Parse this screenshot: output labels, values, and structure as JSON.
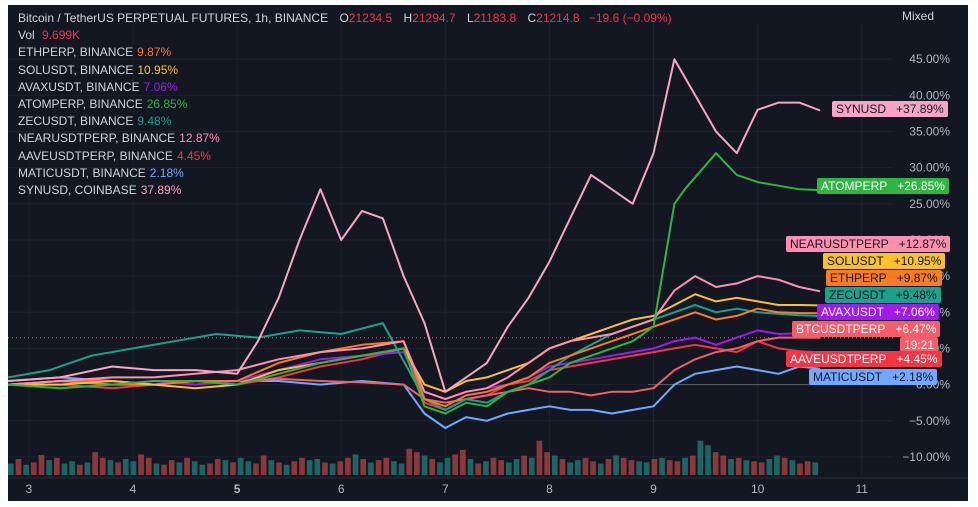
{
  "header": {
    "symbol": "Bitcoin / TetherUS PERPETUAL FUTURES, 1h, BINANCE",
    "open_label": "O",
    "open": "21234.5",
    "high_label": "H",
    "high": "21294.7",
    "low_label": "L",
    "low": "21183.8",
    "close_label": "C",
    "close": "21214.8",
    "change": "−19.6 (−0.09%)",
    "vol_label": "Vol",
    "vol": "9.699K"
  },
  "scale_mode": "Mixed",
  "colors": {
    "background": "#131722",
    "text": "#d1d4dc",
    "grid": "#1e222d",
    "up": "#26a69a",
    "down": "#ef5350",
    "ETHPERP": "#f77c25",
    "SOLUSDT": "#fbc02d",
    "AVAXUSDT": "#a219ee",
    "ATOMPERP": "#2fb544",
    "ZECUSDT": "#1aa28d",
    "NEARUSDTPERP": "#ff8fb1",
    "AAVEUSDTPERP": "#f23645",
    "MATICUSDT": "#74a8ff",
    "SYNUSD": "#f7a6c2",
    "BTCUSDTPERP": "#f55d6b"
  },
  "comparisons": [
    {
      "name": "ETHPERP, BINANCE",
      "value": "9.87%",
      "color": "#f77c25"
    },
    {
      "name": "SOLUSDT, BINANCE",
      "value": "10.95%",
      "color": "#fbc02d"
    },
    {
      "name": "AVAXUSDT, BINANCE",
      "value": "7.06%",
      "color": "#a219ee"
    },
    {
      "name": "ATOMPERP, BINANCE",
      "value": "26.85%",
      "color": "#2fb544"
    },
    {
      "name": "ZECUSDT, BINANCE",
      "value": "9.48%",
      "color": "#1aa28d"
    },
    {
      "name": "NEARUSDTPERP, BINANCE",
      "value": "12.87%",
      "color": "#ff8fb1"
    },
    {
      "name": "AAVEUSDTPERP, BINANCE",
      "value": "4.45%",
      "color": "#f23645"
    },
    {
      "name": "MATICUSDT, BINANCE",
      "value": "2.18%",
      "color": "#74a8ff"
    },
    {
      "name": "SYNUSD, COINBASE",
      "value": "37.89%",
      "color": "#f7a6c2"
    }
  ],
  "chart_data": {
    "type": "line",
    "x_ticks": [
      "3",
      "4",
      "5",
      "6",
      "7",
      "8",
      "9",
      "10",
      "11"
    ],
    "y_ticks": [
      "45.00%",
      "40.00%",
      "35.00%",
      "30.00%",
      "25.00%",
      "20.00%",
      "15.00%",
      "10.00%",
      "5.00%",
      "0.00%",
      "−5.00%",
      "−10.00%"
    ],
    "ylim": [
      -12.5,
      50
    ],
    "xlim": [
      2.8,
      11.3
    ],
    "btc_countdown": "19:21",
    "series": [
      {
        "name": "SYNUSD",
        "label": "SYNUSD",
        "badge": "+37.89%",
        "color": "#f7a6c2",
        "text": "#131722",
        "x": [
          2.8,
          3.3,
          3.8,
          4.2,
          4.6,
          5.0,
          5.2,
          5.4,
          5.6,
          5.8,
          6.0,
          6.2,
          6.4,
          6.6,
          6.8,
          7.0,
          7.2,
          7.4,
          7.6,
          7.8,
          8.0,
          8.2,
          8.4,
          8.6,
          8.8,
          9.0,
          9.2,
          9.4,
          9.6,
          9.8,
          10.0,
          10.2,
          10.4,
          10.6
        ],
        "y": [
          0.5,
          1.0,
          2.5,
          2.0,
          2.0,
          1.5,
          6.0,
          12.0,
          20.0,
          27.0,
          20.0,
          24.0,
          23.0,
          15.0,
          8.5,
          -1.0,
          1.0,
          3.0,
          8.0,
          12.0,
          17.0,
          23.0,
          29.0,
          27.0,
          25.0,
          32.0,
          45.0,
          40.0,
          35.0,
          32.0,
          38.0,
          39.0,
          39.0,
          37.9
        ]
      },
      {
        "name": "ATOMPERP",
        "label": "ATOMPERP",
        "badge": "+26.85%",
        "color": "#2fb544",
        "text": "#ffffff",
        "x": [
          2.8,
          3.3,
          3.8,
          4.2,
          4.6,
          5.0,
          5.4,
          5.8,
          6.2,
          6.6,
          6.8,
          7.0,
          7.2,
          7.4,
          7.6,
          7.8,
          8.0,
          8.2,
          8.4,
          8.6,
          8.8,
          9.0,
          9.2,
          9.3,
          9.6,
          9.8,
          10.0,
          10.2,
          10.4,
          10.6
        ],
        "y": [
          0.0,
          -0.5,
          0.0,
          0.5,
          0.5,
          0.0,
          1.5,
          3.0,
          4.0,
          5.0,
          -3.0,
          -4.0,
          -2.5,
          -3.0,
          -1.0,
          0.0,
          1.0,
          3.0,
          4.0,
          5.0,
          6.0,
          8.0,
          25.0,
          27.0,
          32.0,
          29.0,
          28.0,
          27.5,
          27.0,
          26.9
        ]
      },
      {
        "name": "NEARUSDTPERP",
        "label": "NEARUSDTPERP",
        "badge": "+12.87%",
        "color": "#ff8fb1",
        "text": "#131722",
        "x": [
          2.8,
          3.3,
          3.8,
          4.2,
          4.6,
          5.0,
          5.4,
          5.8,
          6.2,
          6.6,
          6.8,
          7.0,
          7.2,
          7.4,
          7.6,
          7.8,
          8.0,
          8.2,
          8.4,
          8.6,
          8.8,
          9.0,
          9.2,
          9.4,
          9.6,
          9.8,
          10.0,
          10.2,
          10.4,
          10.6
        ],
        "y": [
          0.0,
          0.5,
          1.0,
          1.0,
          1.5,
          2.0,
          3.5,
          4.5,
          5.0,
          6.0,
          -1.0,
          -2.0,
          -1.0,
          -0.5,
          1.0,
          3.0,
          5.0,
          6.0,
          6.5,
          7.0,
          8.0,
          9.0,
          13.0,
          15.0,
          13.5,
          14.0,
          15.0,
          14.5,
          13.5,
          12.9
        ]
      },
      {
        "name": "SOLUSDT",
        "label": "SOLUSDT",
        "badge": "+10.95%",
        "color": "#fbc02d",
        "text": "#131722",
        "x": [
          2.8,
          3.3,
          3.8,
          4.2,
          4.6,
          5.0,
          5.4,
          5.8,
          6.2,
          6.6,
          6.8,
          7.0,
          7.2,
          7.4,
          7.6,
          7.8,
          8.0,
          8.2,
          8.4,
          8.6,
          8.8,
          9.0,
          9.2,
          9.4,
          9.6,
          9.8,
          10.0,
          10.2,
          10.4,
          10.6
        ],
        "y": [
          0.0,
          0.0,
          0.5,
          0.0,
          -0.5,
          0.0,
          2.0,
          3.0,
          4.0,
          5.0,
          0.0,
          -1.0,
          0.5,
          1.0,
          2.0,
          3.0,
          5.0,
          6.0,
          7.0,
          8.0,
          9.0,
          9.5,
          11.0,
          12.5,
          11.5,
          12.0,
          11.5,
          11.0,
          11.0,
          10.95
        ]
      },
      {
        "name": "ETHPERP",
        "label": "ETHPERP",
        "badge": "+9.87%",
        "color": "#f77c25",
        "text": "#131722",
        "x": [
          2.8,
          3.3,
          3.8,
          4.2,
          4.6,
          5.0,
          5.4,
          5.8,
          6.2,
          6.6,
          6.8,
          7.0,
          7.2,
          7.4,
          7.6,
          7.8,
          8.0,
          8.2,
          8.4,
          8.6,
          8.8,
          9.0,
          9.2,
          9.4,
          9.6,
          9.8,
          10.0,
          10.2,
          10.4,
          10.6
        ],
        "y": [
          0.0,
          0.5,
          0.0,
          0.0,
          0.5,
          0.5,
          3.0,
          4.5,
          5.5,
          6.0,
          -2.0,
          -3.0,
          -1.5,
          -1.0,
          0.0,
          1.0,
          3.0,
          4.0,
          5.0,
          6.0,
          7.0,
          8.0,
          9.0,
          10.0,
          9.0,
          9.5,
          10.5,
          10.0,
          9.9,
          9.87
        ]
      },
      {
        "name": "ZECUSDT",
        "label": "ZECUSDT",
        "badge": "+9.48%",
        "color": "#1aa28d",
        "text": "#131722",
        "x": [
          2.8,
          3.2,
          3.6,
          4.0,
          4.4,
          4.8,
          5.2,
          5.6,
          6.0,
          6.4,
          6.8,
          7.0,
          7.2,
          7.4,
          7.6,
          7.8,
          8.0,
          8.2,
          8.4,
          8.6,
          8.8,
          9.0,
          9.2,
          9.4,
          9.6,
          9.8,
          10.0,
          10.2,
          10.4,
          10.6
        ],
        "y": [
          1.0,
          2.0,
          4.0,
          5.0,
          6.0,
          7.0,
          6.5,
          7.5,
          7.0,
          8.5,
          -2.0,
          -3.5,
          -2.0,
          -2.5,
          -1.0,
          0.0,
          2.0,
          4.0,
          5.5,
          7.0,
          8.0,
          9.0,
          10.0,
          11.0,
          10.0,
          10.5,
          10.0,
          9.8,
          9.6,
          9.48
        ]
      },
      {
        "name": "AVAXUSDT",
        "label": "AVAXUSDT",
        "badge": "+7.06%",
        "color": "#a219ee",
        "text": "#ffffff",
        "x": [
          2.8,
          3.3,
          3.8,
          4.2,
          4.6,
          5.0,
          5.4,
          5.8,
          6.2,
          6.6,
          6.8,
          7.0,
          7.2,
          7.4,
          7.6,
          7.8,
          8.0,
          8.2,
          8.4,
          8.6,
          8.8,
          9.0,
          9.2,
          9.4,
          9.6,
          9.8,
          10.0,
          10.2,
          10.4,
          10.6
        ],
        "y": [
          0.0,
          0.5,
          0.0,
          0.5,
          0.0,
          0.5,
          2.0,
          3.5,
          4.0,
          4.5,
          -1.0,
          -2.0,
          -1.0,
          -0.5,
          0.0,
          1.0,
          2.5,
          3.0,
          3.5,
          4.0,
          4.5,
          5.0,
          6.0,
          6.5,
          5.5,
          6.5,
          7.5,
          7.0,
          7.1,
          7.06
        ]
      },
      {
        "name": "BTCUSDTPERP",
        "label": "BTCUSDTPERP",
        "badge": "+6.47%",
        "color": "#f55d6b",
        "text": "#ffffff",
        "x": [
          2.8,
          3.3,
          3.8,
          4.2,
          4.6,
          5.0,
          5.4,
          5.8,
          6.2,
          6.6,
          6.8,
          7.0,
          7.2,
          7.4,
          7.6,
          7.8,
          8.0,
          8.2,
          8.4,
          8.6,
          8.8,
          9.0,
          9.2,
          9.4,
          9.6,
          9.8,
          10.0,
          10.2,
          10.4,
          10.6
        ],
        "y": [
          0.0,
          0.5,
          0.5,
          0.0,
          0.5,
          0.5,
          0.8,
          0.5,
          0.3,
          0.0,
          -2.0,
          -2.5,
          -2.0,
          -1.5,
          -1.0,
          -0.5,
          -1.0,
          -1.0,
          -1.5,
          -1.0,
          -1.0,
          -0.5,
          2.0,
          3.5,
          4.5,
          5.0,
          6.0,
          6.5,
          6.5,
          6.47
        ]
      },
      {
        "name": "AAVEUSDTPERP",
        "label": "AAVEUSDTPERP",
        "badge": "+4.45%",
        "color": "#f23645",
        "text": "#ffffff",
        "x": [
          2.8,
          3.3,
          3.8,
          4.2,
          4.6,
          5.0,
          5.4,
          5.8,
          6.2,
          6.6,
          6.8,
          7.0,
          7.2,
          7.4,
          7.6,
          7.8,
          8.0,
          8.2,
          8.4,
          8.6,
          8.8,
          9.0,
          9.2,
          9.4,
          9.6,
          9.8,
          10.0,
          10.2,
          10.4,
          10.6
        ],
        "y": [
          0.0,
          0.0,
          -0.5,
          0.0,
          0.5,
          0.0,
          1.0,
          2.5,
          3.5,
          5.0,
          -2.5,
          -3.5,
          -2.0,
          -1.5,
          0.0,
          0.5,
          2.0,
          2.5,
          3.0,
          3.5,
          4.0,
          4.5,
          5.0,
          5.5,
          5.0,
          4.5,
          6.0,
          5.0,
          4.6,
          4.45
        ]
      },
      {
        "name": "MATICUSDT",
        "label": "MATICUSDT",
        "badge": "+2.18%",
        "color": "#74a8ff",
        "text": "#131722",
        "x": [
          2.8,
          3.3,
          3.8,
          4.2,
          4.6,
          5.0,
          5.4,
          5.8,
          6.2,
          6.6,
          6.8,
          7.0,
          7.2,
          7.4,
          7.6,
          7.8,
          8.0,
          8.2,
          8.4,
          8.6,
          8.8,
          9.0,
          9.2,
          9.4,
          9.6,
          9.8,
          10.0,
          10.2,
          10.4,
          10.6
        ],
        "y": [
          0.5,
          1.0,
          0.5,
          0.0,
          0.5,
          0.5,
          0.5,
          0.0,
          0.5,
          0.0,
          -4.0,
          -6.0,
          -4.5,
          -5.0,
          -4.0,
          -3.5,
          -3.0,
          -3.5,
          -3.5,
          -4.0,
          -3.5,
          -3.0,
          0.0,
          1.5,
          2.0,
          2.5,
          2.0,
          1.5,
          2.5,
          2.18
        ]
      }
    ],
    "volume": {
      "x_start": 2.8,
      "x_end": 10.6,
      "values": [
        20,
        28,
        18,
        22,
        35,
        26,
        30,
        20,
        24,
        18,
        22,
        40,
        30,
        26,
        22,
        28,
        24,
        36,
        30,
        20,
        18,
        26,
        22,
        30,
        24,
        18,
        20,
        28,
        26,
        22,
        30,
        24,
        20,
        34,
        26,
        22,
        18,
        24,
        30,
        26,
        28,
        22,
        20,
        24,
        30,
        36,
        28,
        22,
        26,
        30,
        24,
        20,
        46,
        40,
        34,
        28,
        22,
        30,
        36,
        44,
        28,
        20,
        24,
        30,
        26,
        22,
        28,
        34,
        30,
        60,
        40,
        34,
        28,
        22,
        26,
        30,
        24,
        20,
        28,
        34,
        30,
        26,
        24,
        22,
        28,
        30,
        26,
        24,
        30,
        34,
        60,
        52,
        40,
        34,
        28,
        30,
        26,
        24,
        22,
        28,
        34,
        30,
        26,
        20,
        24,
        22
      ],
      "up": [
        1,
        0,
        1,
        0,
        0,
        1,
        0,
        1,
        1,
        0,
        1,
        0,
        0,
        1,
        0,
        1,
        1,
        0,
        0,
        1,
        0,
        0,
        1,
        0,
        1,
        1,
        0,
        0,
        1,
        0,
        1,
        1,
        0,
        0,
        1,
        0,
        1,
        0,
        0,
        1,
        1,
        0,
        1,
        0,
        0,
        1,
        0,
        1,
        0,
        0,
        1,
        1,
        0,
        0,
        1,
        0,
        1,
        1,
        0,
        0,
        1,
        0,
        1,
        0,
        0,
        1,
        1,
        0,
        1,
        0,
        0,
        1,
        0,
        1,
        1,
        0,
        0,
        1,
        0,
        1,
        0,
        0,
        1,
        1,
        0,
        1,
        0,
        0,
        1,
        0,
        1,
        1,
        0,
        0,
        1,
        0,
        1,
        0,
        0,
        1,
        1,
        0,
        1,
        0,
        0,
        1
      ],
      "ymax": 70
    }
  }
}
